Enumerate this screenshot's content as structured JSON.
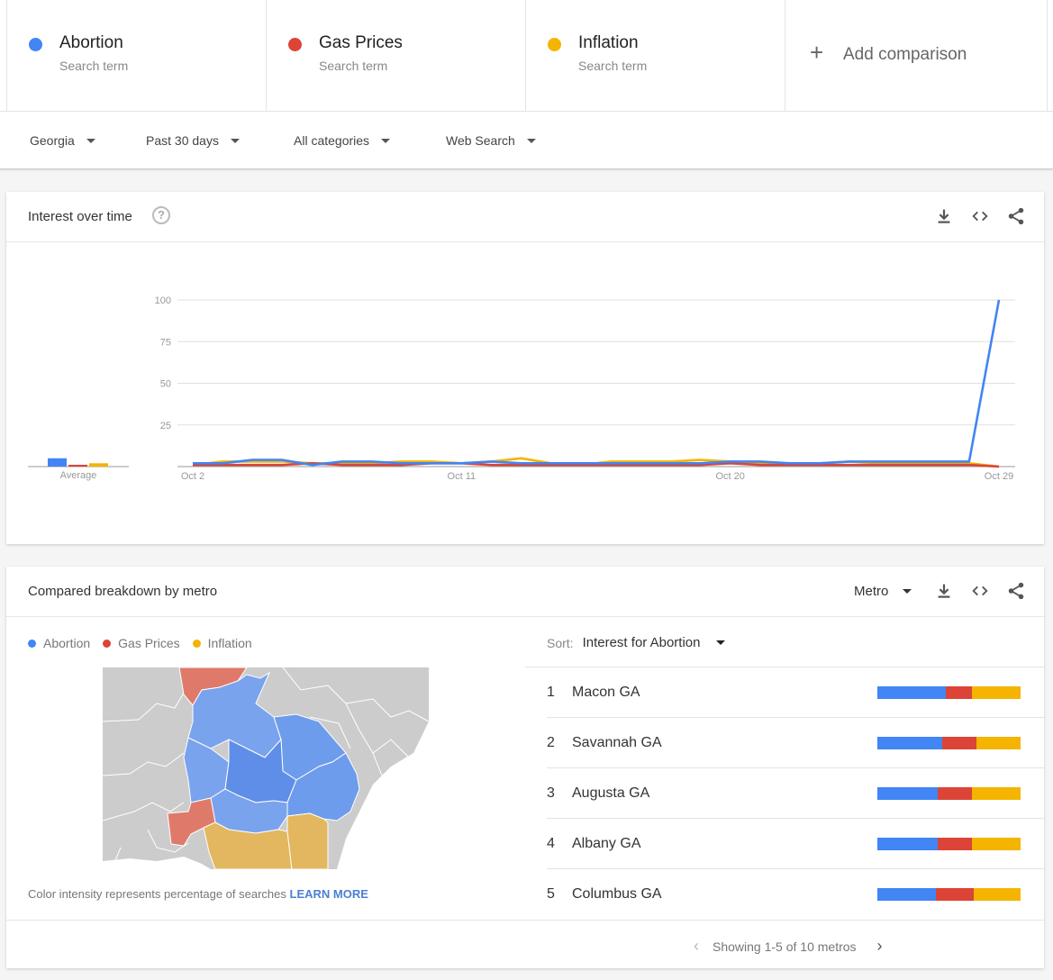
{
  "compare": {
    "terms": [
      {
        "name": "Abortion",
        "sub": "Search term",
        "color": "#4285f4"
      },
      {
        "name": "Gas Prices",
        "sub": "Search term",
        "color": "#db4437"
      },
      {
        "name": "Inflation",
        "sub": "Search term",
        "color": "#f4b400"
      }
    ],
    "add_label": "Add comparison",
    "add_symbol": "+"
  },
  "filters": {
    "region": "Georgia",
    "time": "Past 30 days",
    "category": "All categories",
    "property": "Web Search"
  },
  "interest_over_time": {
    "title": "Interest over time",
    "help_symbol": "?",
    "average_label": "Average"
  },
  "chart_data": {
    "type": "line",
    "x": [
      "Oct 2",
      "Oct 3",
      "Oct 4",
      "Oct 5",
      "Oct 6",
      "Oct 7",
      "Oct 8",
      "Oct 9",
      "Oct 10",
      "Oct 11",
      "Oct 12",
      "Oct 13",
      "Oct 14",
      "Oct 15",
      "Oct 16",
      "Oct 17",
      "Oct 18",
      "Oct 19",
      "Oct 20",
      "Oct 21",
      "Oct 22",
      "Oct 23",
      "Oct 24",
      "Oct 25",
      "Oct 26",
      "Oct 27",
      "Oct 28",
      "Oct 29"
    ],
    "x_tick_labels": [
      "Oct 2",
      "Oct 11",
      "Oct 20",
      "Oct 29"
    ],
    "y_ticks": [
      25,
      50,
      75,
      100
    ],
    "ylim": [
      0,
      100
    ],
    "grid": true,
    "series": [
      {
        "name": "Abortion",
        "color": "#4285f4",
        "values": [
          2,
          2,
          4,
          4,
          1,
          3,
          3,
          2,
          2,
          2,
          3,
          2,
          2,
          2,
          2,
          2,
          2,
          2,
          3,
          3,
          2,
          2,
          3,
          3,
          3,
          3,
          3,
          100
        ]
      },
      {
        "name": "Gas Prices",
        "color": "#db4437",
        "values": [
          1,
          1,
          1,
          1,
          2,
          1,
          1,
          1,
          2,
          2,
          1,
          1,
          1,
          1,
          1,
          1,
          1,
          1,
          2,
          1,
          1,
          1,
          1,
          1,
          1,
          1,
          1,
          0
        ]
      },
      {
        "name": "Inflation",
        "color": "#f4b400",
        "values": [
          1,
          3,
          3,
          3,
          2,
          2,
          2,
          3,
          3,
          2,
          3,
          5,
          2,
          1,
          3,
          3,
          3,
          4,
          3,
          2,
          2,
          2,
          3,
          2,
          2,
          2,
          2,
          0
        ]
      }
    ],
    "averages": [
      5,
      1,
      2
    ]
  },
  "breakdown": {
    "title": "Compared breakdown by metro",
    "metro_label": "Metro",
    "legend": [
      {
        "name": "Abortion",
        "color": "#4285f4"
      },
      {
        "name": "Gas Prices",
        "color": "#db4437"
      },
      {
        "name": "Inflation",
        "color": "#f4b400"
      }
    ],
    "map_note": "Color intensity represents percentage of searches",
    "learn_more": "LEARN MORE",
    "sort_label": "Sort:",
    "sort_value": "Interest for Abortion",
    "rows": [
      {
        "rank": "1",
        "name": "Macon GA",
        "shares": [
          48,
          18,
          34
        ]
      },
      {
        "rank": "2",
        "name": "Savannah GA",
        "shares": [
          45,
          24,
          31
        ]
      },
      {
        "rank": "3",
        "name": "Augusta GA",
        "shares": [
          42,
          24,
          34
        ]
      },
      {
        "rank": "4",
        "name": "Albany GA",
        "shares": [
          42,
          24,
          34
        ]
      },
      {
        "rank": "5",
        "name": "Columbus GA",
        "shares": [
          41,
          26,
          33
        ]
      }
    ],
    "pager_text": "Showing 1-5 of 10 metros"
  }
}
